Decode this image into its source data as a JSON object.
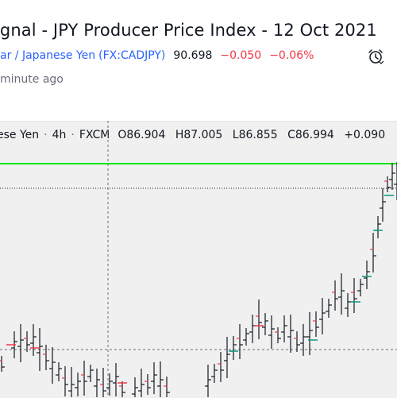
{
  "header": {
    "title": "ignal - JPY Producer Price Index - 12 Oct 2021",
    "pair": "ar / Japanese Yen",
    "symbol": "(FX:CADJPY)",
    "price": "90.698",
    "change": "−0.050",
    "change_pct": "−0.06%",
    "updated": "minute ago"
  },
  "legend": {
    "name": "ese Yen",
    "interval": "4h",
    "source": "FXCM",
    "open_label": "O",
    "open": "86.904",
    "high_label": "H",
    "high": "87.005",
    "low_label": "L",
    "low": "86.855",
    "close_label": "C",
    "close": "86.994",
    "change": "+0.090"
  },
  "colors": {
    "accent": "#2962ff",
    "negative": "#f23645",
    "signal_line": "#00e600",
    "tick_green": "#089981",
    "tick_red": "#f23645",
    "bar": "#131722"
  },
  "icons": {
    "clock": "alarm-clock-icon"
  },
  "chart_data": {
    "type": "ohlc",
    "horizontal_lines": [
      {
        "style": "solid",
        "color": "#00e600"
      },
      {
        "style": "dotted",
        "color": "#131722"
      },
      {
        "style": "dashed",
        "color": "#6a6d78"
      }
    ],
    "vertical_lines": [
      {
        "style": "dashed",
        "color": "#6a6d78"
      }
    ]
  }
}
